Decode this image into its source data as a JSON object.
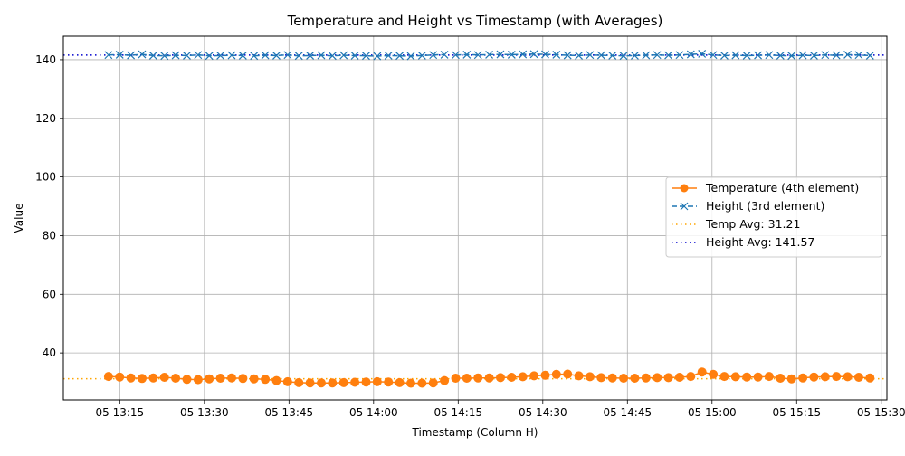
{
  "chart_data": {
    "type": "line",
    "title": "Temperature and Height vs Timestamp (with Averages)",
    "xlabel": "Timestamp (Column H)",
    "ylabel": "Value",
    "x_start": "05 13:13",
    "x_end": "05 15:28",
    "xlim": [
      "05 13:05",
      "05 15:31"
    ],
    "ylim": [
      24,
      148
    ],
    "x_ticks": [
      "05 13:15",
      "05 13:30",
      "05 13:45",
      "05 14:00",
      "05 14:15",
      "05 14:30",
      "05 14:45",
      "05 15:00",
      "05 15:15",
      "05 15:30"
    ],
    "y_ticks": [
      40,
      60,
      80,
      100,
      120,
      140
    ],
    "grid": true,
    "legend_position": "center-right",
    "series": [
      {
        "name": "Temperature (4th element)",
        "color": "#ff7f0e",
        "style": "solid",
        "marker": "circle",
        "gaps_after_index": [
          12,
          30
        ],
        "values": [
          32.0,
          31.8,
          31.5,
          31.3,
          31.5,
          31.7,
          31.4,
          31.0,
          30.9,
          31.2,
          31.4,
          31.5,
          31.3,
          31.2,
          31.0,
          30.6,
          30.2,
          29.9,
          29.8,
          29.8,
          29.8,
          29.9,
          30.0,
          30.1,
          30.2,
          30.1,
          29.9,
          29.7,
          29.7,
          29.8,
          30.6,
          31.4,
          31.4,
          31.5,
          31.5,
          31.6,
          31.7,
          31.9,
          32.2,
          32.4,
          32.7,
          32.8,
          32.2,
          31.9,
          31.6,
          31.5,
          31.4,
          31.4,
          31.5,
          31.6,
          31.6,
          31.7,
          32.0,
          33.5,
          32.7,
          32.0,
          31.9,
          31.8,
          31.8,
          32.0,
          31.4,
          31.2,
          31.5,
          31.8,
          31.9,
          32.0,
          31.9,
          31.7,
          31.5
        ]
      },
      {
        "name": "Height (3rd element)",
        "color": "#1f77b4",
        "style": "dashed",
        "marker": "x",
        "gaps_after_index": [
          12,
          30
        ],
        "values": [
          141.6,
          141.7,
          141.5,
          141.8,
          141.4,
          141.3,
          141.5,
          141.4,
          141.6,
          141.3,
          141.4,
          141.5,
          141.4,
          141.3,
          141.5,
          141.4,
          141.6,
          141.3,
          141.4,
          141.5,
          141.3,
          141.5,
          141.4,
          141.3,
          141.2,
          141.4,
          141.3,
          141.2,
          141.4,
          141.6,
          141.7,
          141.6,
          141.7,
          141.6,
          141.7,
          141.8,
          141.7,
          141.8,
          141.9,
          141.8,
          141.7,
          141.5,
          141.4,
          141.6,
          141.5,
          141.4,
          141.3,
          141.4,
          141.5,
          141.6,
          141.5,
          141.6,
          141.8,
          142.0,
          141.6,
          141.4,
          141.5,
          141.4,
          141.5,
          141.6,
          141.4,
          141.3,
          141.5,
          141.4,
          141.6,
          141.5,
          141.7,
          141.6,
          141.4
        ]
      },
      {
        "name": "Temp Avg: 31.21",
        "color": "#ffa500",
        "style": "dotted",
        "constant": 31.21
      },
      {
        "name": "Height Avg: 141.57",
        "color": "#0000cd",
        "style": "dotted",
        "constant": 141.57
      }
    ]
  }
}
